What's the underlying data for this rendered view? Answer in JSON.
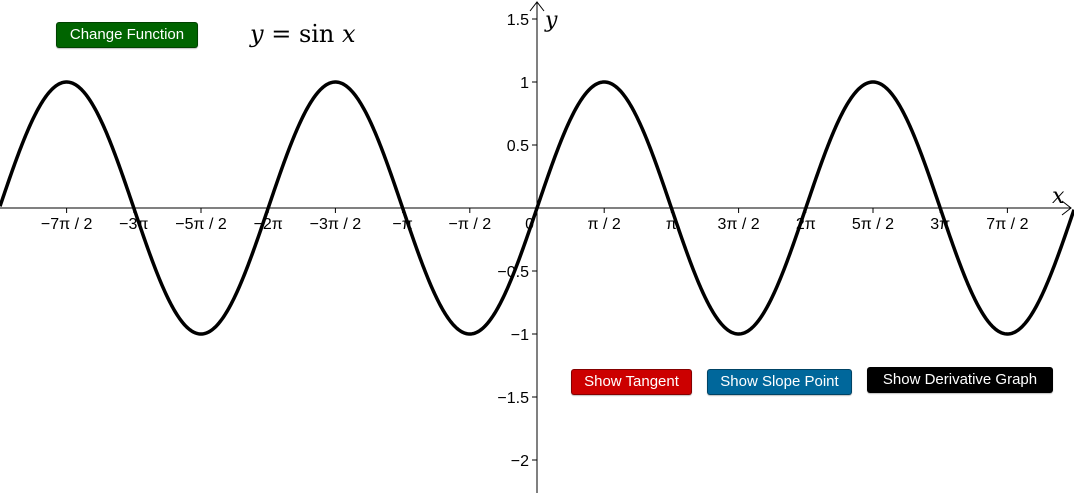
{
  "buttons": {
    "change_function": {
      "label": "Change Function",
      "color": "#006400"
    },
    "show_tangent": {
      "label": "Show Tangent",
      "color": "#cc0000"
    },
    "show_slope_point": {
      "label": "Show Slope Point",
      "color": "#00679b"
    },
    "show_derivative_graph": {
      "label": "Show Derivative Graph",
      "color": "#000000"
    }
  },
  "function_label": {
    "lhs": "y",
    "eq": " = ",
    "fn": "sin",
    "var": "x"
  },
  "chart_data": {
    "type": "line",
    "function": "sin",
    "title": "",
    "xlabel": "x",
    "ylabel": "y",
    "xlim": [
      -12.57,
      12.57
    ],
    "ylim": [
      -2.2,
      1.6
    ],
    "x_ticks": [
      {
        "value": -10.9956,
        "label": "−7π / 2"
      },
      {
        "value": -9.4248,
        "label": "−3π"
      },
      {
        "value": -7.854,
        "label": "−5π / 2"
      },
      {
        "value": -6.2832,
        "label": "−2π"
      },
      {
        "value": -4.7124,
        "label": "−3π / 2"
      },
      {
        "value": -3.1416,
        "label": "−π"
      },
      {
        "value": -1.5708,
        "label": "−π / 2"
      },
      {
        "value": 1.5708,
        "label": "π / 2"
      },
      {
        "value": 3.1416,
        "label": "π"
      },
      {
        "value": 4.7124,
        "label": "3π / 2"
      },
      {
        "value": 6.2832,
        "label": "2π"
      },
      {
        "value": 7.854,
        "label": "5π / 2"
      },
      {
        "value": 9.4248,
        "label": "3π"
      },
      {
        "value": 10.9956,
        "label": "7π / 2"
      }
    ],
    "y_ticks": [
      {
        "value": 1.5,
        "label": "1.5"
      },
      {
        "value": 1,
        "label": "1"
      },
      {
        "value": 0.5,
        "label": "0.5"
      },
      {
        "value": -0.5,
        "label": "−0.5"
      },
      {
        "value": -1,
        "label": "−1"
      },
      {
        "value": -1.5,
        "label": "−1.5"
      },
      {
        "value": -2,
        "label": "−2"
      }
    ],
    "origin_label": "0",
    "grid": false,
    "line_color": "#000000"
  }
}
